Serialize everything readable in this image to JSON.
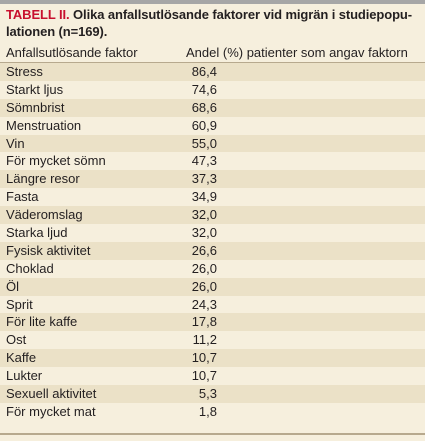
{
  "table": {
    "caption_label": "TABELL II.",
    "caption_text": " Olika anfallsutlösande faktorer vid migrän i studiepopu-lationen (n=169).",
    "headers": [
      "Anfallsutlösande faktor",
      "Andel (%) patienter som angav faktorn"
    ],
    "rows": [
      {
        "factor": "Stress",
        "value": "86,4"
      },
      {
        "factor": "Starkt ljus",
        "value": "74,6"
      },
      {
        "factor": "Sömnbrist",
        "value": "68,6"
      },
      {
        "factor": "Menstruation",
        "value": "60,9"
      },
      {
        "factor": "Vin",
        "value": "55,0"
      },
      {
        "factor": "För mycket sömn",
        "value": "47,3"
      },
      {
        "factor": "Längre resor",
        "value": "37,3"
      },
      {
        "factor": "Fasta",
        "value": "34,9"
      },
      {
        "factor": "Väderomslag",
        "value": "32,0"
      },
      {
        "factor": "Starka ljud",
        "value": "32,0"
      },
      {
        "factor": "Fysisk aktivitet",
        "value": "26,6"
      },
      {
        "factor": "Choklad",
        "value": "26,0"
      },
      {
        "factor": "Öl",
        "value": "26,0"
      },
      {
        "factor": "Sprit",
        "value": "24,3"
      },
      {
        "factor": "För lite kaffe",
        "value": "17,8"
      },
      {
        "factor": "Ost",
        "value": "11,2"
      },
      {
        "factor": "Kaffe",
        "value": "10,7"
      },
      {
        "factor": "Lukter",
        "value": "10,7"
      },
      {
        "factor": "Sexuell aktivitet",
        "value": "5,3"
      },
      {
        "factor": "För mycket mat",
        "value": "1,8"
      }
    ]
  }
}
